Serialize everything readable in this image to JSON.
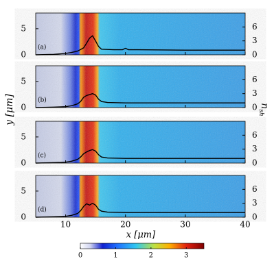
{
  "figure": {
    "xlabel": "x [μm]",
    "ylabel": "y [μm]",
    "y2label": "n",
    "y2label_sub": "sh"
  },
  "colorbar": {
    "lim": [
      0,
      3.5
    ],
    "ticks": [
      0,
      1,
      2,
      3
    ]
  },
  "chart_data": [
    {
      "type": "line",
      "label": "(a)",
      "xlim": [
        5,
        40
      ],
      "ylim": [
        0,
        8
      ],
      "yticks": [
        0,
        5
      ],
      "y2lim": [
        0,
        9
      ],
      "y2ticks": [
        0,
        3,
        6
      ],
      "x": [
        5,
        8,
        10,
        11,
        12,
        13,
        13.5,
        14,
        14.5,
        15,
        15.5,
        16,
        18,
        19.5,
        20,
        20.5,
        22,
        30,
        40
      ],
      "series": [
        {
          "color": "#000000",
          "axis": "y2",
          "values": [
            0,
            0.1,
            0.3,
            0.5,
            0.8,
            1.5,
            2.5,
            3.6,
            4.1,
            3,
            1.8,
            1.2,
            1.1,
            1.1,
            1.4,
            1.1,
            1.1,
            1,
            1
          ]
        }
      ]
    },
    {
      "type": "line",
      "label": "(b)",
      "xlim": [
        5,
        40
      ],
      "ylim": [
        0,
        8
      ],
      "yticks": [
        0,
        5
      ],
      "y2lim": [
        0,
        9
      ],
      "y2ticks": [
        0,
        3,
        6
      ],
      "x": [
        5,
        8,
        10,
        11,
        12,
        12.5,
        13,
        13.5,
        14,
        14.5,
        15,
        15.5,
        16,
        17,
        20,
        30,
        40
      ],
      "series": [
        {
          "color": "#000000",
          "axis": "y2",
          "values": [
            0,
            0.1,
            0.2,
            0.4,
            0.8,
            1.3,
            2.2,
            2.6,
            2.8,
            3,
            2.7,
            1.8,
            1.3,
            1.1,
            1,
            1,
            1
          ]
        }
      ]
    },
    {
      "type": "line",
      "label": "(c)",
      "xlim": [
        5,
        40
      ],
      "ylim": [
        0,
        8
      ],
      "yticks": [
        0,
        5
      ],
      "y2lim": [
        0,
        9
      ],
      "y2ticks": [
        0,
        3,
        6
      ],
      "x": [
        5,
        8,
        10,
        11,
        12,
        12.5,
        13,
        13.5,
        14,
        14.5,
        15,
        15.5,
        16,
        17,
        20,
        30,
        40
      ],
      "series": [
        {
          "color": "#000000",
          "axis": "y2",
          "values": [
            0,
            0.1,
            0.2,
            0.4,
            0.8,
            1.3,
            2,
            2.4,
            2.7,
            2.9,
            2.6,
            1.8,
            1.3,
            1.1,
            1,
            1,
            1
          ]
        }
      ]
    },
    {
      "type": "line",
      "label": "(d)",
      "xlim": [
        5,
        40
      ],
      "ylim": [
        0,
        8
      ],
      "yticks": [
        0,
        5
      ],
      "y2lim": [
        0,
        9
      ],
      "y2ticks": [
        0,
        3,
        6
      ],
      "xticks": [
        10,
        20,
        30,
        40
      ],
      "x": [
        5,
        8,
        10,
        11,
        12,
        12.5,
        13,
        13.5,
        14,
        14.5,
        15,
        15.5,
        16,
        17,
        20,
        30,
        40
      ],
      "series": [
        {
          "color": "#000000",
          "axis": "y2",
          "values": [
            0,
            0.1,
            0.2,
            0.4,
            0.8,
            1.4,
            2.3,
            2.9,
            2.6,
            3,
            2.6,
            1.7,
            1.3,
            1.1,
            1,
            1,
            1
          ]
        }
      ]
    }
  ]
}
